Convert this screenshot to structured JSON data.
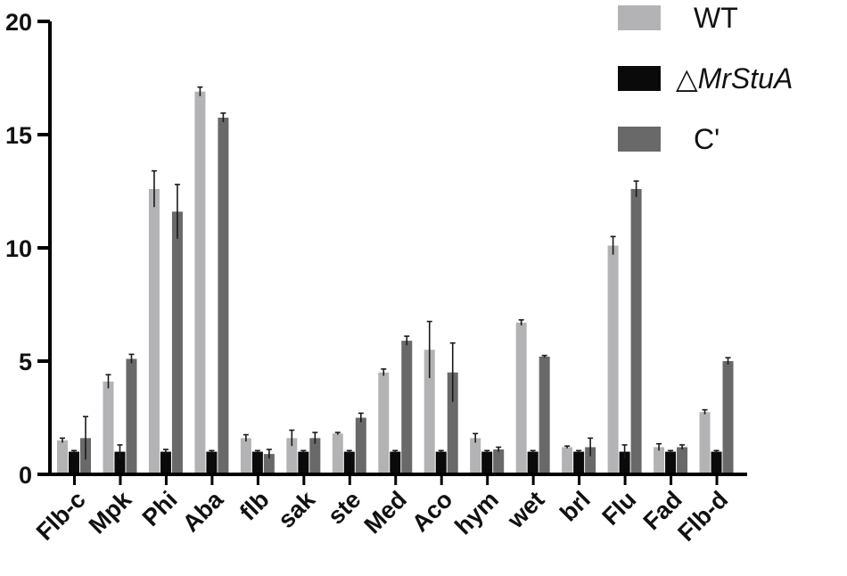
{
  "chart_data": {
    "type": "bar",
    "title": "",
    "xlabel": "",
    "ylabel": "",
    "ylim": [
      0,
      20
    ],
    "yticks": [
      "0",
      "5",
      "10",
      "15",
      "20"
    ],
    "categories": [
      "Flb-c",
      "Mpk",
      "Phi",
      "Aba",
      "flb",
      "sak",
      "ste",
      "Med",
      "Aco",
      "hym",
      "wet",
      "brl",
      "Flu",
      "Fad",
      "Flb-d"
    ],
    "legend_position": "top-right",
    "series": [
      {
        "name": "WT",
        "color": "#b3b3b5",
        "values": [
          1.5,
          4.1,
          12.6,
          16.9,
          1.6,
          1.6,
          1.8,
          4.5,
          5.5,
          1.6,
          6.7,
          1.2,
          10.1,
          1.2,
          2.75
        ],
        "errors": [
          0.1,
          0.3,
          0.8,
          0.2,
          0.15,
          0.35,
          0.05,
          0.15,
          1.25,
          0.2,
          0.12,
          0.05,
          0.4,
          0.15,
          0.1
        ]
      },
      {
        "name_prefix": "△",
        "name_italic": "MrStuA",
        "color": "#0a0a0a",
        "values": [
          1.0,
          1.0,
          1.0,
          1.0,
          1.0,
          1.0,
          1.0,
          1.0,
          1.0,
          1.0,
          1.0,
          1.0,
          1.0,
          1.0,
          1.0
        ],
        "errors": [
          0.05,
          0.3,
          0.1,
          0.05,
          0.05,
          0.05,
          0.05,
          0.05,
          0.05,
          0.05,
          0.05,
          0.05,
          0.3,
          0.05,
          0.05
        ]
      },
      {
        "name": "C'",
        "color": "#696969",
        "values": [
          1.6,
          5.1,
          11.6,
          15.75,
          0.9,
          1.6,
          2.5,
          5.9,
          4.5,
          1.1,
          5.2,
          1.2,
          12.6,
          1.2,
          5.0
        ],
        "errors": [
          0.95,
          0.2,
          1.2,
          0.2,
          0.2,
          0.25,
          0.2,
          0.2,
          1.3,
          0.1,
          0.05,
          0.4,
          0.35,
          0.1,
          0.15
        ]
      }
    ]
  }
}
